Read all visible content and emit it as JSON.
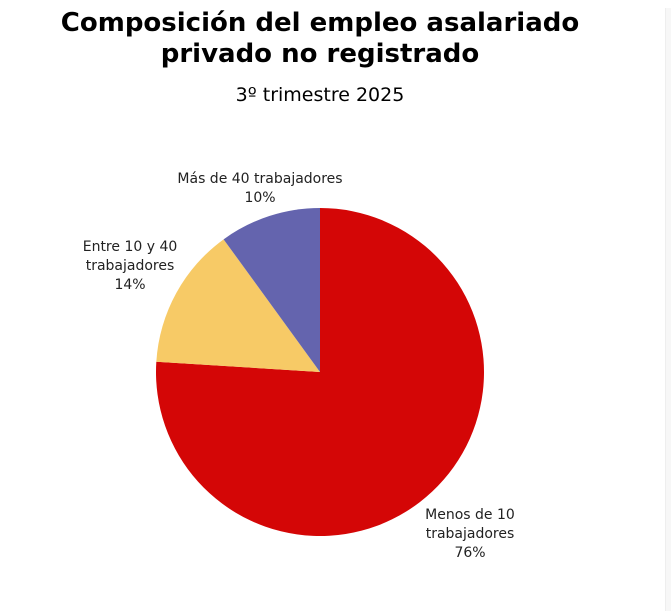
{
  "chart_data": {
    "type": "pie",
    "title_line1": "Composición del empleo asalariado",
    "title_line2": "privado no registrado",
    "subtitle": "3º trimestre 2025",
    "start_angle_deg": 0,
    "direction": "clockwise",
    "slices": [
      {
        "label_line1": "Menos de 10",
        "label_line2": "trabajadores",
        "value": 76,
        "value_label": "76%",
        "color": "#D40606"
      },
      {
        "label_line1": "Entre 10 y 40",
        "label_line2": "trabajadores",
        "value": 14,
        "value_label": "14%",
        "color": "#F7CA66"
      },
      {
        "label_line1": "Más de 40 trabajadores",
        "label_line2": "",
        "value": 10,
        "value_label": "10%",
        "color": "#6464AE"
      }
    ]
  }
}
